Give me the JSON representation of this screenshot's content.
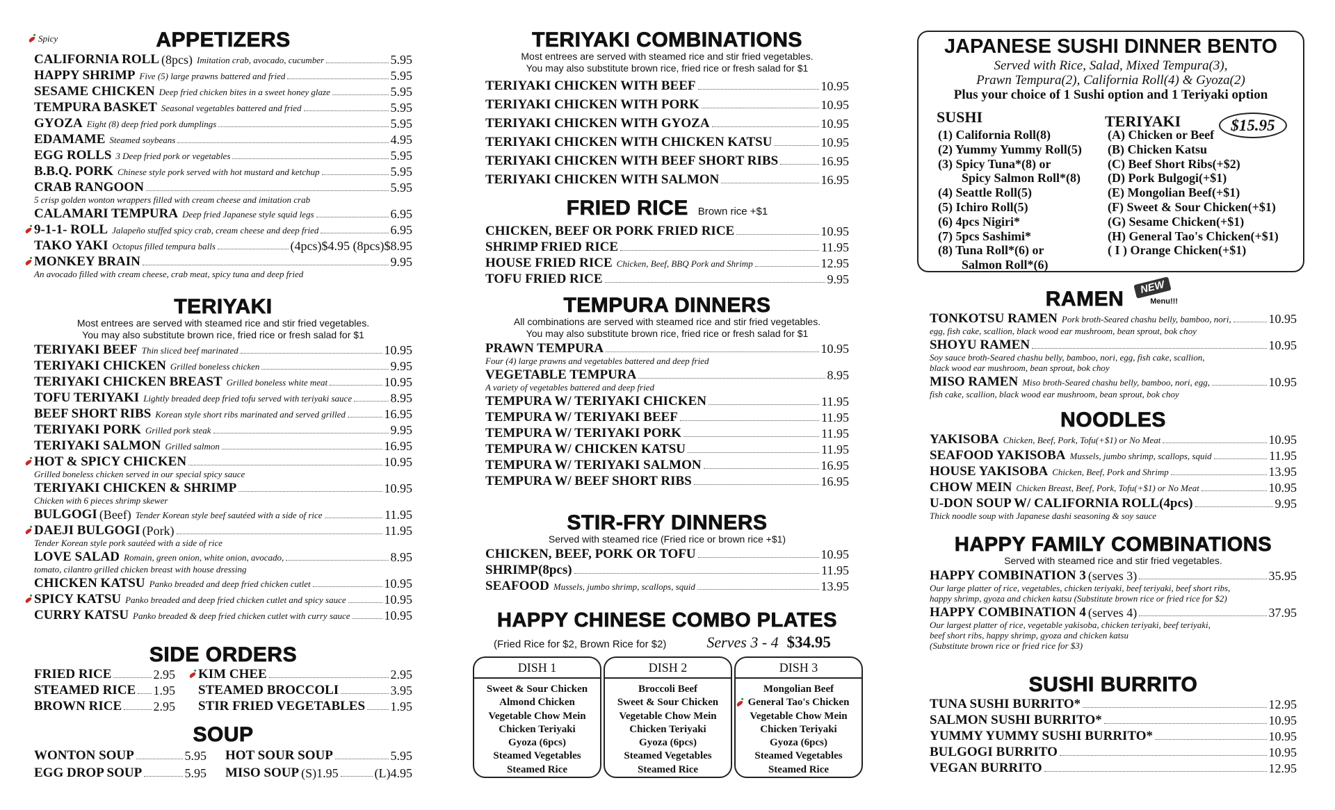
{
  "spicy_legend": "Spicy",
  "columns": [
    {
      "sections": [
        {
          "heading": "APPETIZERS",
          "items": [
            {
              "name": "CALIFORNIA ROLL",
              "extra": "(8pcs)",
              "desc": "Imitation crab, avocado, cucumber",
              "price": "5.95"
            },
            {
              "name": "HAPPY SHRIMP",
              "desc": "Five (5) large prawns battered and fried",
              "price": "5.95"
            },
            {
              "name": "SESAME CHICKEN",
              "desc": "Deep fried chicken bites in a sweet honey glaze",
              "price": "5.95"
            },
            {
              "name": "TEMPURA BASKET",
              "desc": "Seasonal vegetables battered and fried",
              "price": "5.95"
            },
            {
              "name": "GYOZA",
              "desc": "Eight (8) deep fried pork dumplings",
              "price": "5.95"
            },
            {
              "name": "EDAMAME",
              "desc": "Steamed soybeans",
              "price": "4.95"
            },
            {
              "name": "EGG ROLLS",
              "desc": "3 Deep fried pork or vegetables",
              "price": "5.95"
            },
            {
              "name": "B.B.Q. PORK",
              "desc": "Chinese style pork served with hot mustard and ketchup",
              "price": "5.95"
            },
            {
              "name": "CRAB RANGOON",
              "price": "5.95",
              "note": [
                "5 crisp golden wonton wrappers filled with cream cheese and imitation crab"
              ]
            },
            {
              "name": "CALAMARI TEMPURA",
              "desc": "Deep fried Japanese style squid legs",
              "price": "6.95"
            },
            {
              "name": "9-1-1- ROLL",
              "spicy": true,
              "desc": "Jalapeño stuffed spicy crab, cream cheese and deep fried",
              "price": "6.95"
            },
            {
              "name": "TAKO YAKI",
              "desc": "Octopus filled tempura balls",
              "price": "(4pcs)$4.95  (8pcs)$8.95"
            },
            {
              "name": "MONKEY BRAIN",
              "spicy": true,
              "price": "9.95",
              "note": [
                "An avocado filled with cream cheese, crab meat, spicy tuna and deep fried"
              ]
            }
          ]
        },
        {
          "heading": "TERIYAKI",
          "intro": [
            "Most entrees are served with steamed rice and stir fried vegetables.",
            "You may also substitute brown rice, fried rice or fresh salad for $1"
          ],
          "items": [
            {
              "name": "TERIYAKI BEEF",
              "desc": "Thin sliced beef marinated",
              "price": "10.95"
            },
            {
              "name": "TERIYAKI CHICKEN",
              "desc": "Grilled boneless chicken",
              "price": "9.95"
            },
            {
              "name": "TERIYAKI CHICKEN BREAST",
              "desc": "Grilled boneless white meat",
              "price": "10.95"
            },
            {
              "name": "TOFU TERIYAKI",
              "desc": "Lightly breaded deep fried tofu served with teriyaki sauce",
              "price": "8.95"
            },
            {
              "name": "BEEF SHORT RIBS",
              "desc": "Korean style short ribs marinated and served grilled",
              "price": "16.95"
            },
            {
              "name": "TERIYAKI PORK",
              "desc": "Grilled pork steak",
              "price": "9.95"
            },
            {
              "name": "TERIYAKI SALMON",
              "desc": "Grilled salmon",
              "price": "16.95"
            },
            {
              "name": "HOT & SPICY CHICKEN",
              "spicy": true,
              "price": "10.95",
              "note": [
                "Grilled boneless chicken served in our special spicy sauce"
              ]
            },
            {
              "name": "TERIYAKI CHICKEN & SHRIMP",
              "price": "10.95",
              "note": [
                "Chicken with 6 pieces shrimp skewer"
              ]
            },
            {
              "name": "BULGOGI",
              "extra": "(Beef)",
              "desc": "Tender Korean style beef sautéed with a side of rice",
              "price": "11.95"
            },
            {
              "name": "DAEJI BULGOGI",
              "spicy": true,
              "extra": "(Pork)",
              "price": "11.95",
              "note": [
                "Tender Korean style pork sautéed with a side of rice"
              ]
            },
            {
              "name": "LOVE SALAD",
              "desc": "Romain, green onion, white onion, avocado,",
              "price": "8.95",
              "note": [
                "tomato, cilantro grilled chicken breast with house dressing"
              ]
            },
            {
              "name": "CHICKEN KATSU",
              "desc": "Panko breaded and deep fried chicken cutlet",
              "price": "10.95"
            },
            {
              "name": "SPICY KATSU",
              "spicy": true,
              "desc": "Panko breaded and deep fried chicken cutlet and spicy sauce",
              "price": "10.95"
            },
            {
              "name": "CURRY KATSU",
              "desc": "Panko breaded & deep fried chicken cutlet with curry sauce",
              "price": "10.95"
            }
          ]
        },
        {
          "heading": "SIDE ORDERS",
          "columns": [
            [
              {
                "name": "FRIED RICE",
                "price": "2.95"
              },
              {
                "name": "STEAMED RICE",
                "price": "1.95"
              },
              {
                "name": "BROWN RICE",
                "price": "2.95"
              }
            ],
            [
              {
                "name": "KIM CHEE",
                "spicy": true,
                "price": "2.95"
              },
              {
                "name": "STEAMED BROCCOLI",
                "price": "3.95"
              },
              {
                "name": "STIR FRIED VEGETABLES",
                "price": "1.95"
              }
            ]
          ]
        },
        {
          "heading": "SOUP",
          "columns": [
            [
              {
                "name": "WONTON SOUP",
                "price": "5.95"
              },
              {
                "name": "EGG DROP SOUP",
                "price": "5.95"
              }
            ],
            [
              {
                "name": "HOT SOUR SOUP",
                "price": "5.95"
              },
              {
                "name": "MISO SOUP",
                "extra": "(S)1.95",
                "price": "(L)4.95"
              }
            ]
          ]
        }
      ]
    },
    {
      "sections": [
        {
          "heading": "TERIYAKI COMBINATIONS",
          "intro": [
            "Most entrees are served with steamed rice and stir fried vegetables.",
            "You may also substitute brown rice, fried rice or fresh salad for $1"
          ],
          "items": [
            {
              "name": "TERIYAKI CHICKEN WITH BEEF",
              "price": "10.95"
            },
            {
              "name": "TERIYAKI CHICKEN WITH PORK",
              "price": "10.95"
            },
            {
              "name": "TERIYAKI CHICKEN WITH GYOZA",
              "price": "10.95"
            },
            {
              "name": "TERIYAKI CHICKEN WITH CHICKEN KATSU",
              "price": "10.95"
            },
            {
              "name": "TERIYAKI CHICKEN WITH BEEF SHORT RIBS",
              "price": "16.95"
            },
            {
              "name": "TERIYAKI CHICKEN WITH SALMON",
              "price": "16.95"
            }
          ]
        },
        {
          "heading": "FRIED RICE",
          "heading_note": "Brown rice +$1",
          "items": [
            {
              "name": "CHICKEN, BEEF OR PORK FRIED RICE",
              "price": "10.95"
            },
            {
              "name": "SHRIMP FRIED RICE",
              "price": "11.95"
            },
            {
              "name": "HOUSE FRIED RICE",
              "desc": "Chicken, Beef, BBQ Pork and Shrimp",
              "price": "12.95"
            },
            {
              "name": "TOFU FRIED RICE",
              "price": "9.95"
            }
          ]
        },
        {
          "heading": "TEMPURA DINNERS",
          "intro": [
            "All combinations are served with steamed rice and stir fried vegetables.",
            "You may also substitute brown rice, fried rice or fresh salad for $1"
          ],
          "items": [
            {
              "name": "PRAWN TEMPURA",
              "price": "10.95",
              "note": [
                "Four (4) large prawns and vegetables battered and deep fried"
              ]
            },
            {
              "name": "VEGETABLE TEMPURA",
              "price": "8.95",
              "note": [
                "A variety of vegetables battered and deep fried"
              ]
            },
            {
              "name": "TEMPURA W/ TERIYAKI CHICKEN",
              "price": "11.95"
            },
            {
              "name": "TEMPURA W/ TERIYAKI BEEF",
              "price": "11.95"
            },
            {
              "name": "TEMPURA W/ TERIYAKI PORK",
              "price": "11.95"
            },
            {
              "name": "TEMPURA W/ CHICKEN KATSU",
              "price": "11.95"
            },
            {
              "name": "TEMPURA W/ TERIYAKI SALMON",
              "price": "16.95"
            },
            {
              "name": "TEMPURA W/ BEEF SHORT RIBS",
              "price": "16.95"
            }
          ]
        },
        {
          "heading": "STIR-FRY DINNERS",
          "intro": [
            "Served with steamed rice (Fried rice or brown rice +$1)"
          ],
          "items": [
            {
              "name": "CHICKEN, BEEF, PORK OR TOFU",
              "price": "10.95"
            },
            {
              "name": "SHRIMP(8pcs)",
              "price": "11.95"
            },
            {
              "name": "SEAFOOD",
              "desc": "Mussels, jumbo shrimp, scallops, squid",
              "price": "13.95"
            }
          ]
        },
        {
          "heading": "HAPPY CHINESE COMBO PLATES",
          "note": "(Fried Rice for $2, Brown Rice for $2)",
          "serves": "Serves 3 - 4",
          "price": "$34.95",
          "dishes": [
            {
              "title": "DISH 1",
              "items": [
                "Sweet & Sour Chicken",
                "Almond Chicken",
                "Vegetable Chow Mein",
                "Chicken Teriyaki",
                "Gyoza (6pcs)",
                "Steamed Vegetables",
                "Steamed Rice"
              ]
            },
            {
              "title": "DISH 2",
              "items": [
                "Broccoli Beef",
                "Sweet & Sour Chicken",
                "Vegetable Chow Mein",
                "Chicken Teriyaki",
                "Gyoza (6pcs)",
                "Steamed Vegetables",
                "Steamed Rice"
              ]
            },
            {
              "title": "DISH 3",
              "items": [
                "Mongolian Beef",
                "General Tao's Chicken",
                "Vegetable Chow Mein",
                "Chicken Teriyaki",
                "Gyoza (6pcs)",
                "Steamed Vegetables",
                "Steamed Rice"
              ]
            }
          ]
        }
      ]
    },
    {
      "sections": [
        {
          "title": "JAPANESE SUSHI DINNER BENTO",
          "lines": [
            "Served with Rice, Salad, Mixed Tempura(3),",
            "Prawn Tempura(2), California Roll(4) & Gyoza(2)"
          ],
          "choice": "Plus your choice of 1 Sushi option and 1 Teriyaki option",
          "price": "$15.95",
          "sushi": {
            "heading": "SUSHI",
            "options": [
              [
                "(1) California Roll(8)"
              ],
              [
                "(2) Yummy Yummy Roll(5)"
              ],
              [
                "(3) Spicy Tuna*(8) or",
                "Spicy Salmon Roll*(8)"
              ],
              [
                "(4) Seattle Roll(5)"
              ],
              [
                "(5) Ichiro Roll(5)"
              ],
              [
                "(6) 4pcs Nigiri*"
              ],
              [
                "(7) 5pcs Sashimi*"
              ],
              [
                "(8) Tuna Roll*(6) or",
                "Salmon Roll*(6)"
              ]
            ]
          },
          "teriyaki": {
            "heading": "TERIYAKI",
            "options": [
              [
                "(A) Chicken or Beef"
              ],
              [
                "(B) Chicken Katsu"
              ],
              [
                "(C) Beef Short Ribs(+$2)"
              ],
              [
                "(D) Pork Bulgogi(+$1)"
              ],
              [
                "(E) Mongolian Beef(+$1)"
              ],
              [
                "(F) Sweet & Sour Chicken(+$1)"
              ],
              [
                "(G) Sesame Chicken(+$1)"
              ],
              [
                "(H) General Tao's Chicken(+$1)"
              ],
              [
                "( I ) Orange Chicken(+$1)"
              ]
            ]
          }
        },
        {
          "heading": "RAMEN",
          "badge": "NEW",
          "badge_sub": "Menu!!!",
          "items": [
            {
              "name": "TONKOTSU RAMEN",
              "desc": "Pork broth-Seared chashu belly, bamboo, nori,",
              "price": "10.95",
              "note": [
                "egg, fish cake, scallion, black wood ear mushroom, bean sprout, bok choy"
              ]
            },
            {
              "name": "SHOYU RAMEN",
              "price": "10.95",
              "note": [
                "Soy sauce broth-Seared chashu belly, bamboo, nori, egg, fish cake, scallion,",
                "black wood ear mushroom, bean sprout, bok choy"
              ]
            },
            {
              "name": "MISO RAMEN",
              "desc": "Miso broth-Seared chashu belly, bamboo, nori, egg,",
              "price": "10.95",
              "note": [
                "fish cake, scallion, black wood ear mushroom, bean sprout, bok choy"
              ]
            }
          ]
        },
        {
          "heading": "NOODLES",
          "items": [
            {
              "name": "YAKISOBA",
              "desc": "Chicken, Beef, Pork, Tofu(+$1) or No Meat",
              "price": "10.95"
            },
            {
              "name": "SEAFOOD YAKISOBA",
              "desc": "Mussels, jumbo shrimp, scallops, squid",
              "price": "11.95"
            },
            {
              "name": "HOUSE YAKISOBA",
              "desc": "Chicken, Beef, Pork and Shrimp",
              "price": "13.95"
            },
            {
              "name": "CHOW MEIN",
              "desc": "Chicken Breast, Beef, Pork, Tofu(+$1) or No Meat",
              "price": "10.95"
            },
            {
              "name": "U-DON SOUP W/ CALIFORNIA ROLL(4pcs)",
              "price": "9.95",
              "note": [
                "Thick noodle soup with Japanese dashi seasoning & soy sauce"
              ]
            }
          ]
        },
        {
          "heading": "HAPPY FAMILY COMBINATIONS",
          "intro": [
            "Served with steamed rice and stir fried vegetables."
          ],
          "items": [
            {
              "name": "HAPPY COMBINATION 3",
              "extra": "(serves 3)",
              "price": "35.95",
              "note": [
                "Our large platter of rice, vegetables, chicken teriyaki, beef teriyaki, beef short ribs,",
                "happy shrimp, gyoza and chicken katsu (Substitute brown rice or fried rice for $2)"
              ]
            },
            {
              "name": "HAPPY COMBINATION 4",
              "extra": "(serves 4)",
              "price": "37.95",
              "note": [
                "Our largest platter of rice, vegetable yakisoba, chicken teriyaki, beef teriyaki,",
                "beef short ribs, happy shrimp, gyoza and chicken katsu",
                "(Substitute brown rice or fried rice for $3)"
              ]
            }
          ]
        },
        {
          "heading": "SUSHI BURRITO",
          "items": [
            {
              "name": "TUNA SUSHI BURRITO*",
              "price": "12.95"
            },
            {
              "name": "SALMON SUSHI BURRITO*",
              "price": "10.95"
            },
            {
              "name": "YUMMY YUMMY SUSHI BURRITO*",
              "price": "10.95"
            },
            {
              "name": "BULGOGI BURRITO",
              "price": "10.95"
            },
            {
              "name": "VEGAN BURRITO",
              "price": "12.95"
            }
          ]
        }
      ]
    }
  ]
}
